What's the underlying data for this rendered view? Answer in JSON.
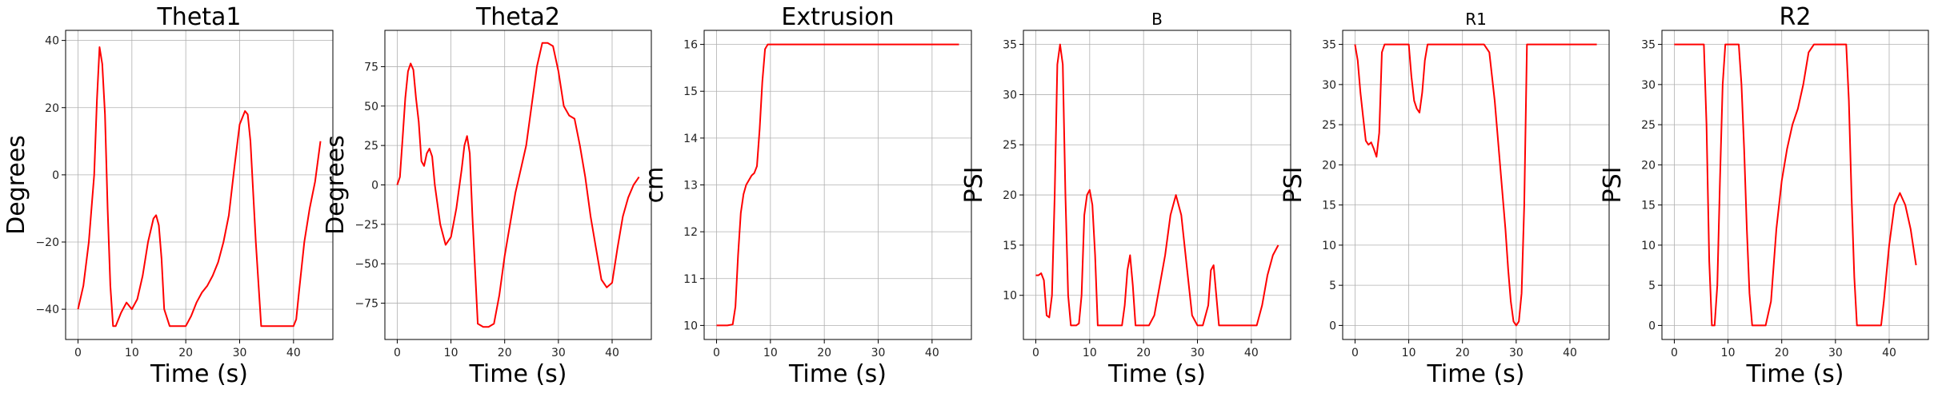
{
  "chart_data": [
    {
      "type": "line",
      "title": "Theta1",
      "xlabel": "Time (s)",
      "ylabel": "Degrees",
      "xlim": [
        -2.3,
        47.3
      ],
      "ylim": [
        -49,
        43
      ],
      "xticks": [
        0,
        10,
        20,
        30,
        40
      ],
      "yticks": [
        -40,
        -20,
        0,
        20,
        40
      ],
      "grid": true,
      "series": [
        {
          "color": "#ff0000",
          "x": [
            0,
            1,
            2,
            3,
            3.5,
            4,
            4.5,
            5,
            5.5,
            6,
            6.5,
            7,
            8,
            9,
            10,
            11,
            12,
            13,
            14,
            14.5,
            15,
            15.5,
            16,
            17,
            18,
            19,
            20,
            21,
            22,
            23,
            24,
            25,
            26,
            27,
            28,
            29,
            30,
            31,
            31.5,
            32,
            33,
            34,
            35,
            36,
            37,
            38,
            39,
            40,
            40.5,
            41,
            42,
            43,
            44,
            45
          ],
          "y": [
            -40,
            -33,
            -20,
            0,
            22,
            38,
            33,
            18,
            -10,
            -33,
            -45,
            -45,
            -41,
            -38,
            -40,
            -37,
            -30,
            -20,
            -13,
            -12,
            -15,
            -25,
            -40,
            -45,
            -45,
            -45,
            -45,
            -42,
            -38,
            -35,
            -33,
            -30,
            -26,
            -20,
            -12,
            2,
            15,
            19,
            18,
            10,
            -20,
            -45,
            -45,
            -45,
            -45,
            -45,
            -45,
            -45,
            -43,
            -35,
            -20,
            -10,
            -2,
            10
          ]
        }
      ]
    },
    {
      "type": "line",
      "title": "Theta2",
      "xlabel": "Time (s)",
      "ylabel": "Degrees",
      "xlim": [
        -2.3,
        47.3
      ],
      "ylim": [
        -98,
        98
      ],
      "xticks": [
        0,
        10,
        20,
        30,
        40
      ],
      "yticks": [
        -75,
        -50,
        -25,
        0,
        25,
        50,
        75
      ],
      "grid": true,
      "series": [
        {
          "color": "#ff0000",
          "x": [
            0,
            0.5,
            1,
            1.5,
            2,
            2.5,
            3,
            3.5,
            4,
            4.5,
            5,
            5.5,
            6,
            6.5,
            7,
            8,
            9,
            10,
            11,
            12,
            12.5,
            13,
            13.5,
            14,
            15,
            16,
            17,
            18,
            19,
            20,
            21,
            22,
            23,
            24,
            25,
            26,
            27,
            28,
            29,
            30,
            31,
            32,
            33,
            34,
            35,
            36,
            37,
            38,
            39,
            40,
            41,
            42,
            43,
            44,
            45
          ],
          "y": [
            0,
            5,
            30,
            55,
            72,
            77,
            73,
            55,
            40,
            15,
            12,
            20,
            23,
            18,
            0,
            -25,
            -38,
            -33,
            -15,
            10,
            25,
            31,
            20,
            -20,
            -88,
            -90,
            -90,
            -88,
            -70,
            -45,
            -25,
            -5,
            10,
            25,
            50,
            75,
            90,
            90,
            88,
            72,
            50,
            44,
            42,
            25,
            5,
            -20,
            -40,
            -60,
            -65,
            -62,
            -40,
            -20,
            -8,
            0,
            5
          ]
        }
      ]
    },
    {
      "type": "line",
      "title": "Extrusion",
      "xlabel": "Time (s)",
      "ylabel": "cm",
      "xlim": [
        -2.3,
        47.3
      ],
      "ylim": [
        9.7,
        16.3
      ],
      "xticks": [
        0,
        10,
        20,
        30,
        40
      ],
      "yticks": [
        10,
        11,
        12,
        13,
        14,
        15,
        16
      ],
      "grid": true,
      "series": [
        {
          "color": "#ff0000",
          "x": [
            0,
            1,
            2,
            3,
            3.5,
            4,
            4.5,
            5,
            5.5,
            6,
            6.5,
            7,
            7.5,
            8,
            8.5,
            9,
            9.5,
            10,
            15,
            20,
            25,
            30,
            35,
            40,
            45
          ],
          "y": [
            10,
            10,
            10,
            10.02,
            10.4,
            11.5,
            12.4,
            12.8,
            13.0,
            13.1,
            13.2,
            13.25,
            13.4,
            14.2,
            15.2,
            15.9,
            16,
            16,
            16,
            16,
            16,
            16,
            16,
            16,
            16
          ]
        }
      ]
    },
    {
      "type": "line",
      "title": "B",
      "xlabel": "Time (s)",
      "ylabel": "PSI",
      "xlim": [
        -2.3,
        47.3
      ],
      "ylim": [
        5.6,
        36.4
      ],
      "xticks": [
        0,
        10,
        20,
        30,
        40
      ],
      "yticks": [
        10,
        15,
        20,
        25,
        30,
        35
      ],
      "grid": true,
      "series": [
        {
          "color": "#ff0000",
          "x": [
            0,
            0.5,
            1,
            1.5,
            2,
            2.5,
            3,
            3.5,
            4,
            4.5,
            5,
            5.5,
            6,
            6.5,
            7,
            7.5,
            8,
            8.5,
            9,
            9.5,
            10,
            10.5,
            11,
            11.5,
            12,
            12.5,
            13,
            14,
            15,
            16,
            16.5,
            17,
            17.5,
            18,
            18.5,
            19,
            20,
            21,
            22,
            23,
            24,
            25,
            26,
            27,
            28,
            29,
            30,
            31,
            32,
            32.5,
            33,
            34,
            35,
            40,
            41,
            42,
            43,
            44,
            45
          ],
          "y": [
            12,
            12,
            12.2,
            11.5,
            8,
            7.8,
            10,
            20,
            33,
            35,
            33,
            20,
            10,
            7,
            7,
            7,
            7.2,
            10,
            18,
            20,
            20.5,
            19,
            14,
            7,
            7,
            7,
            7,
            7,
            7,
            7,
            9,
            12.5,
            14,
            11,
            7,
            7,
            7,
            7,
            8,
            11,
            14,
            18,
            20,
            18,
            13,
            8,
            7,
            7,
            9,
            12.5,
            13,
            7,
            7,
            7,
            7,
            9,
            12,
            14,
            15
          ]
        }
      ]
    },
    {
      "type": "line",
      "title": "R1",
      "xlabel": "Time (s)",
      "ylabel": "PSI",
      "xlim": [
        -2.3,
        47.3
      ],
      "ylim": [
        -1.75,
        36.75
      ],
      "xticks": [
        0,
        10,
        20,
        30,
        40
      ],
      "yticks": [
        0,
        5,
        10,
        15,
        20,
        25,
        30,
        35
      ],
      "grid": true,
      "series": [
        {
          "color": "#ff0000",
          "x": [
            0,
            0.5,
            1,
            1.5,
            2,
            2.5,
            3,
            3.5,
            4,
            4.5,
            5,
            5.5,
            6,
            7,
            8,
            9,
            10,
            10.5,
            11,
            11.5,
            12,
            12.5,
            13,
            13.5,
            14,
            15,
            16,
            17,
            18,
            19,
            20,
            21,
            22,
            23,
            24,
            25,
            26,
            27,
            28,
            28.5,
            29,
            29.5,
            30,
            30.5,
            31,
            31.5,
            32,
            33,
            34,
            35,
            40,
            45
          ],
          "y": [
            35,
            33,
            29,
            26,
            23,
            22.5,
            22.8,
            22,
            21,
            24,
            34,
            35,
            35,
            35,
            35,
            35,
            35,
            31,
            28,
            27,
            26.5,
            29,
            33,
            35,
            35,
            35,
            35,
            35,
            35,
            35,
            35,
            35,
            35,
            35,
            35,
            34,
            28,
            20,
            12,
            7,
            3,
            0.5,
            0,
            0.5,
            4,
            15,
            35,
            35,
            35,
            35,
            35,
            35
          ]
        }
      ]
    },
    {
      "type": "line",
      "title": "R2",
      "xlabel": "Time (s)",
      "ylabel": "PSI",
      "xlim": [
        -2.3,
        47.3
      ],
      "ylim": [
        -1.75,
        36.75
      ],
      "xticks": [
        0,
        10,
        20,
        30,
        40
      ],
      "yticks": [
        0,
        5,
        10,
        15,
        20,
        25,
        30,
        35
      ],
      "grid": true,
      "series": [
        {
          "color": "#ff0000",
          "x": [
            0,
            1,
            2,
            3,
            4,
            5,
            5.5,
            6,
            6.5,
            7,
            7.5,
            8,
            8.5,
            9,
            9.5,
            10,
            11,
            12,
            12.5,
            13,
            13.5,
            14,
            14.5,
            15,
            16,
            17,
            18,
            19,
            20,
            21,
            22,
            23,
            24,
            25,
            26,
            27,
            28,
            29,
            30,
            31,
            32,
            32.5,
            33,
            33.5,
            34,
            35,
            36,
            37,
            38,
            38.5,
            39,
            40,
            41,
            42,
            43,
            44,
            45
          ],
          "y": [
            35,
            35,
            35,
            35,
            35,
            35,
            35,
            25,
            8,
            0,
            0,
            5,
            18,
            30,
            35,
            35,
            35,
            35,
            30,
            22,
            12,
            4,
            0,
            0,
            0,
            0,
            3,
            12,
            18,
            22,
            25,
            27,
            30,
            34,
            35,
            35,
            35,
            35,
            35,
            35,
            35,
            28,
            16,
            6,
            0,
            0,
            0,
            0,
            0,
            0,
            3,
            10,
            15,
            16.5,
            15,
            12,
            7.5
          ]
        }
      ]
    }
  ]
}
